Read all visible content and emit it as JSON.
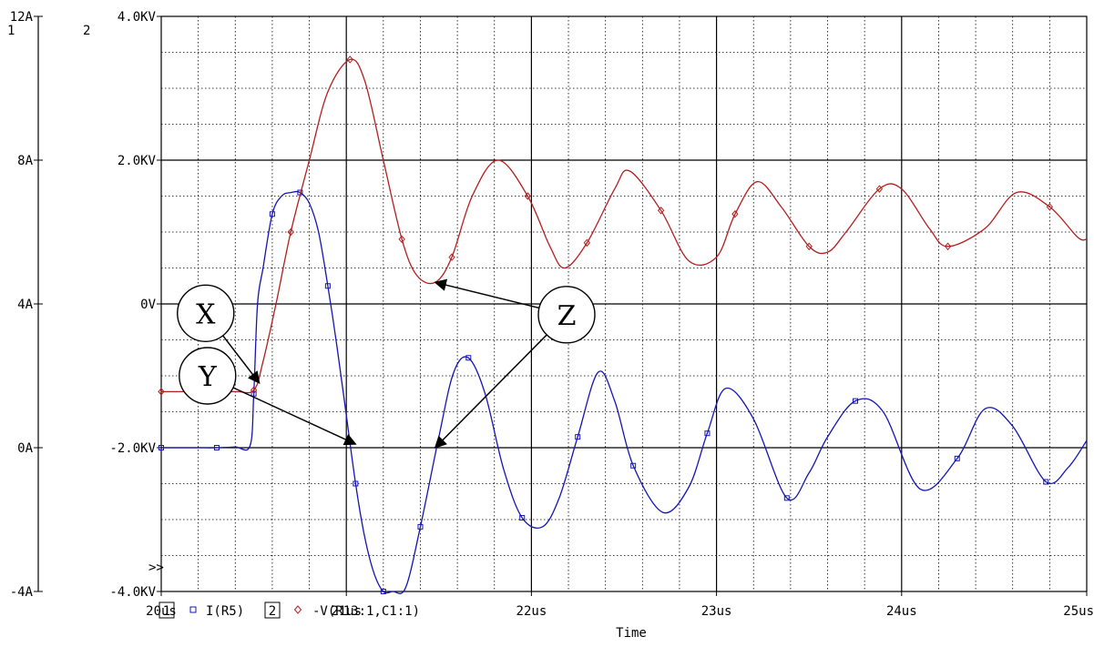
{
  "chart_data": {
    "type": "line",
    "title": "",
    "xlabel": "Time",
    "x_unit": "us",
    "xlim": [
      20,
      25
    ],
    "x_ticks": [
      20,
      21,
      22,
      23,
      24,
      25
    ],
    "x_tick_labels": [
      "20us",
      "21us",
      "22us",
      "23us",
      "24us",
      "25us"
    ],
    "axis1": {
      "number": "1",
      "ylim": [
        -4,
        12
      ],
      "ticks": [
        -4,
        0,
        4,
        8,
        12
      ],
      "tick_labels": [
        "-4A",
        "0A",
        "4A",
        "8A",
        "12A"
      ]
    },
    "axis2": {
      "number": "2",
      "ylim": [
        -4,
        4
      ],
      "ticks": [
        -4,
        -2,
        0,
        2,
        4
      ],
      "tick_labels": [
        "-4.0KV",
        "-2.0KV",
        "0V",
        "2.0KV",
        "4.0KV"
      ]
    },
    "grid": true,
    "legend_placement": "bottom-left",
    "scroll_marker": ">>",
    "series": [
      {
        "name": "I(R5)",
        "legend_index": "1",
        "axis": 1,
        "color": "#1414b4",
        "marker": "square",
        "x": [
          20.0,
          20.1,
          20.2,
          20.3,
          20.4,
          20.48,
          20.5,
          20.52,
          20.55,
          20.6,
          20.65,
          20.7,
          20.75,
          20.8,
          20.85,
          20.9,
          20.95,
          21.0,
          21.05,
          21.1,
          21.15,
          21.2,
          21.25,
          21.32,
          21.4,
          21.5,
          21.58,
          21.66,
          21.75,
          21.85,
          21.95,
          22.06,
          22.15,
          22.25,
          22.36,
          22.45,
          22.55,
          22.71,
          22.85,
          22.95,
          23.05,
          23.2,
          23.38,
          23.5,
          23.6,
          23.75,
          23.9,
          24.1,
          24.3,
          24.45,
          24.6,
          24.78,
          24.9,
          25.0
        ],
        "values": [
          0.0,
          0.0,
          0.0,
          0.0,
          0.02,
          0.05,
          1.5,
          4.0,
          5.0,
          6.5,
          7.0,
          7.1,
          7.1,
          6.8,
          6.0,
          4.5,
          2.8,
          0.9,
          -1.0,
          -2.5,
          -3.5,
          -4.0,
          -4.0,
          -3.9,
          -2.2,
          0.3,
          2.1,
          2.5,
          1.5,
          -0.6,
          -1.95,
          -2.2,
          -1.4,
          0.3,
          2.1,
          1.3,
          -0.5,
          -1.8,
          -1.1,
          0.4,
          1.65,
          0.8,
          -1.4,
          -0.7,
          0.3,
          1.3,
          1.0,
          -1.15,
          -0.3,
          1.08,
          0.6,
          -0.95,
          -0.55,
          0.2
        ]
      },
      {
        "name": "-V(R13:1,C1:1)",
        "legend_index": "2",
        "axis": 2,
        "color": "#b41e1e",
        "marker": "diamond",
        "x": [
          20.0,
          20.2,
          20.4,
          20.5,
          20.55,
          20.62,
          20.7,
          20.8,
          20.9,
          21.02,
          21.1,
          21.2,
          21.3,
          21.38,
          21.48,
          21.57,
          21.68,
          21.82,
          21.98,
          22.1,
          22.18,
          22.3,
          22.45,
          22.53,
          22.7,
          22.85,
          23.0,
          23.1,
          23.22,
          23.35,
          23.5,
          23.6,
          23.7,
          23.88,
          24.0,
          24.15,
          24.25,
          24.45,
          24.62,
          24.8,
          24.95,
          25.0
        ],
        "values": [
          -1.22,
          -1.22,
          -1.22,
          -1.2,
          -0.8,
          0.0,
          1.0,
          2.0,
          2.95,
          3.4,
          3.1,
          2.0,
          0.9,
          0.4,
          0.3,
          0.65,
          1.5,
          2.0,
          1.5,
          0.8,
          0.5,
          0.85,
          1.6,
          1.85,
          1.3,
          0.6,
          0.65,
          1.25,
          1.7,
          1.35,
          0.8,
          0.72,
          1.0,
          1.6,
          1.6,
          1.05,
          0.8,
          1.05,
          1.55,
          1.35,
          0.93,
          0.9
        ]
      }
    ],
    "annotations": [
      {
        "label": "X",
        "circle_at": [
          20.24,
          3.74
        ],
        "circle_axis": 1,
        "points_to": [
          [
            20.53,
            1.8
          ]
        ],
        "target_axis": 1
      },
      {
        "label": "Y",
        "circle_at": [
          20.25,
          2.0
        ],
        "circle_axis": 1,
        "points_to": [
          [
            21.05,
            0.1
          ]
        ],
        "target_axis": 1
      },
      {
        "label": "Z",
        "circle_at": [
          22.19,
          3.7
        ],
        "circle_axis": 1,
        "points_to": [
          [
            21.48,
            0.3
          ],
          [
            21.48,
            -2.0
          ]
        ],
        "target_axis": 2
      }
    ]
  }
}
